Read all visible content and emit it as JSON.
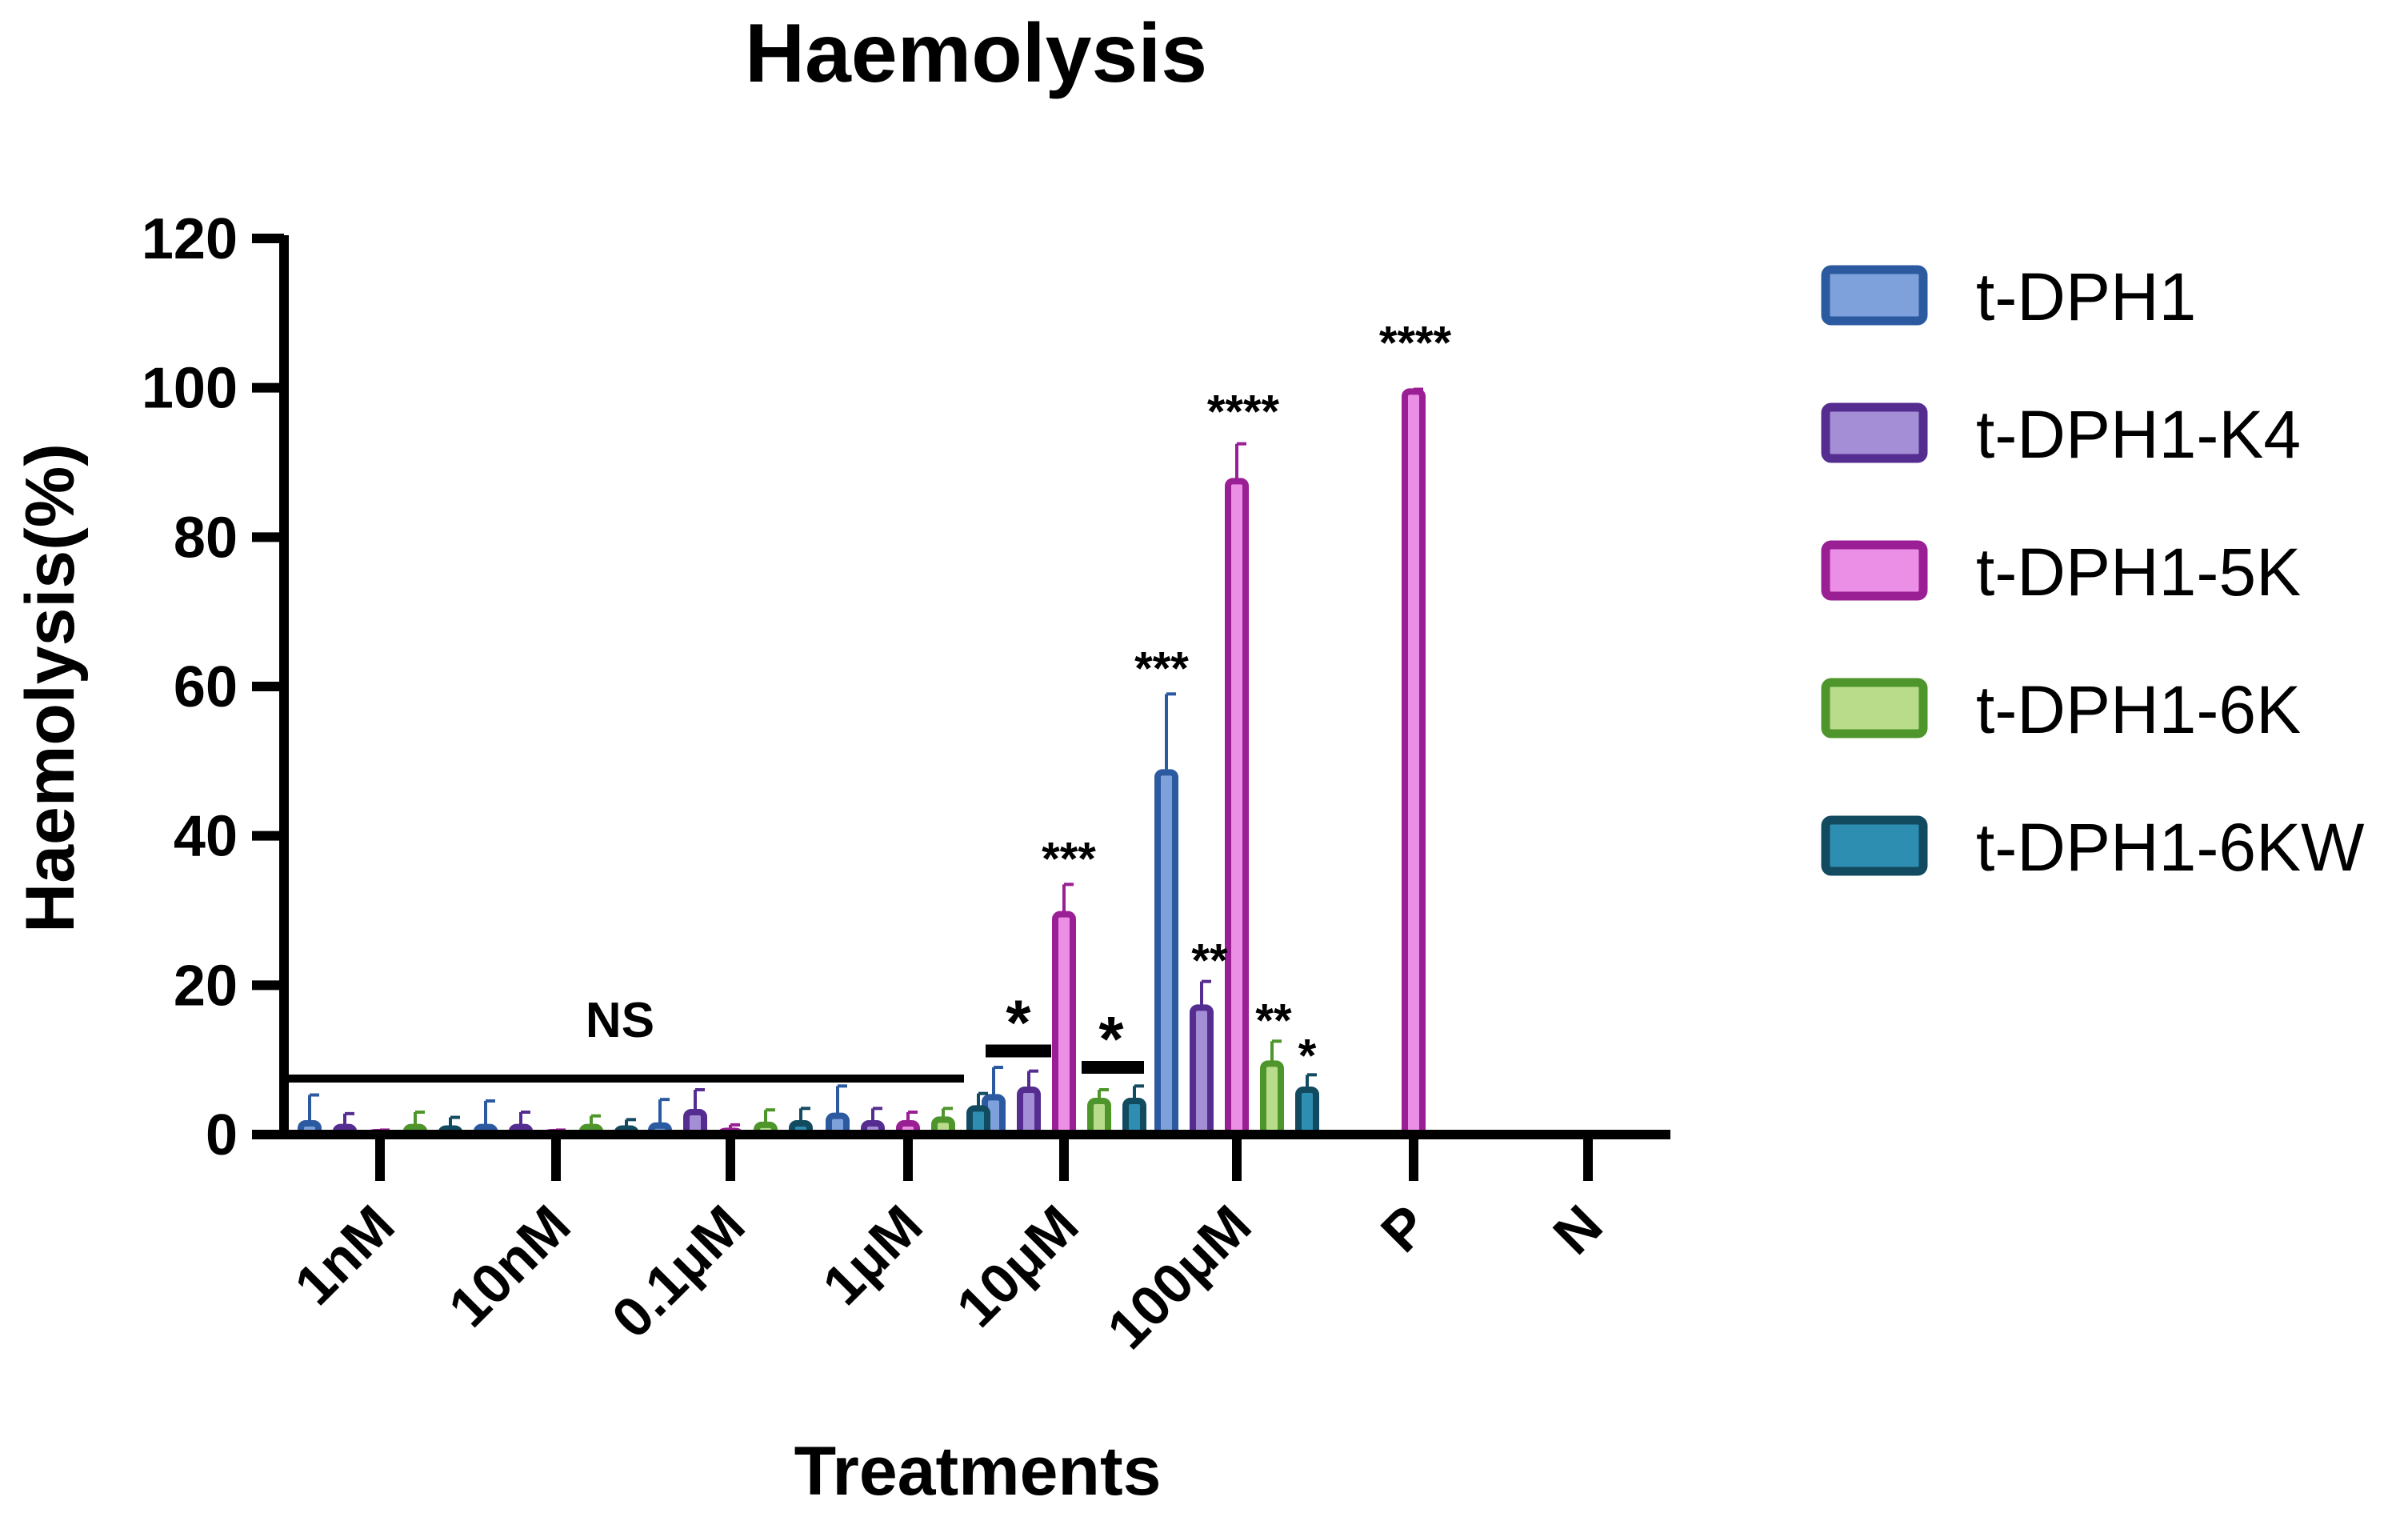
{
  "chart_data": {
    "type": "bar",
    "title": "Haemolysis",
    "xlabel": "Treatments",
    "ylabel": "Haemolysis(%)",
    "ylim": [
      0,
      120
    ],
    "yticks": [
      "0",
      "20",
      "40",
      "60",
      "80",
      "100",
      "120"
    ],
    "categories": [
      "1nM",
      "10nM",
      "0.1μM",
      "1μM",
      "10μM",
      "100μM",
      "P",
      "N"
    ],
    "series": [
      {
        "name": "t-DPH1",
        "edge": "#2c5aa0",
        "fill": "#7ea1dc",
        "values": [
          1.5,
          1.0,
          1.2,
          2.5,
          5.0,
          48.5,
          null,
          null
        ],
        "errors": [
          3.8,
          3.5,
          3.5,
          4.0,
          4.0,
          10.5,
          null,
          null
        ]
      },
      {
        "name": "t-DPH1-K4",
        "edge": "#552d91",
        "fill": "#a48fd6",
        "values": [
          1.0,
          1.0,
          3.0,
          1.5,
          6.0,
          17.0,
          null,
          null
        ],
        "errors": [
          1.8,
          2.0,
          3.0,
          2.0,
          2.5,
          3.5,
          null,
          null
        ]
      },
      {
        "name": "t-DPH1-5K",
        "edge": "#9a1f94",
        "fill": "#ea8ee6",
        "values": [
          0.2,
          0.2,
          0.5,
          1.5,
          29.5,
          87.5,
          99.5,
          null
        ],
        "errors": [
          0.4,
          0.4,
          0.8,
          1.5,
          4.0,
          5.0,
          0.3,
          null
        ]
      },
      {
        "name": "t-DPH1-6K",
        "edge": "#4e962b",
        "fill": "#b8dc8a",
        "values": [
          1.0,
          1.0,
          1.3,
          2.0,
          4.5,
          9.5,
          null,
          null
        ],
        "errors": [
          2.0,
          1.5,
          2.0,
          1.5,
          1.5,
          3.0,
          null,
          null
        ]
      },
      {
        "name": "t-DPH1-6KW",
        "edge": "#124a60",
        "fill": "#2e8eb2",
        "values": [
          0.8,
          0.8,
          1.5,
          3.5,
          4.5,
          6.0,
          null,
          null
        ],
        "errors": [
          1.5,
          1.2,
          2.0,
          2.0,
          2.0,
          2.0,
          null,
          null
        ]
      }
    ],
    "legend_position": "right",
    "annotations": {
      "ns_label": "NS",
      "ns_level": 7.5,
      "ns_span_categories": [
        "1nM",
        "1μM"
      ],
      "sig_10uM_left": "*",
      "sig_10uM_left_level": 11.2,
      "sig_10uM_right": "*",
      "sig_10uM_right_level": 9.0,
      "sig_10uM_5K": "***",
      "sig_100uM_DPH1": "***",
      "sig_100uM_K4": "**",
      "sig_100uM_5K": "****",
      "sig_100uM_6K": "**",
      "sig_100uM_6KW": "*",
      "sig_P_5K": "****"
    }
  }
}
